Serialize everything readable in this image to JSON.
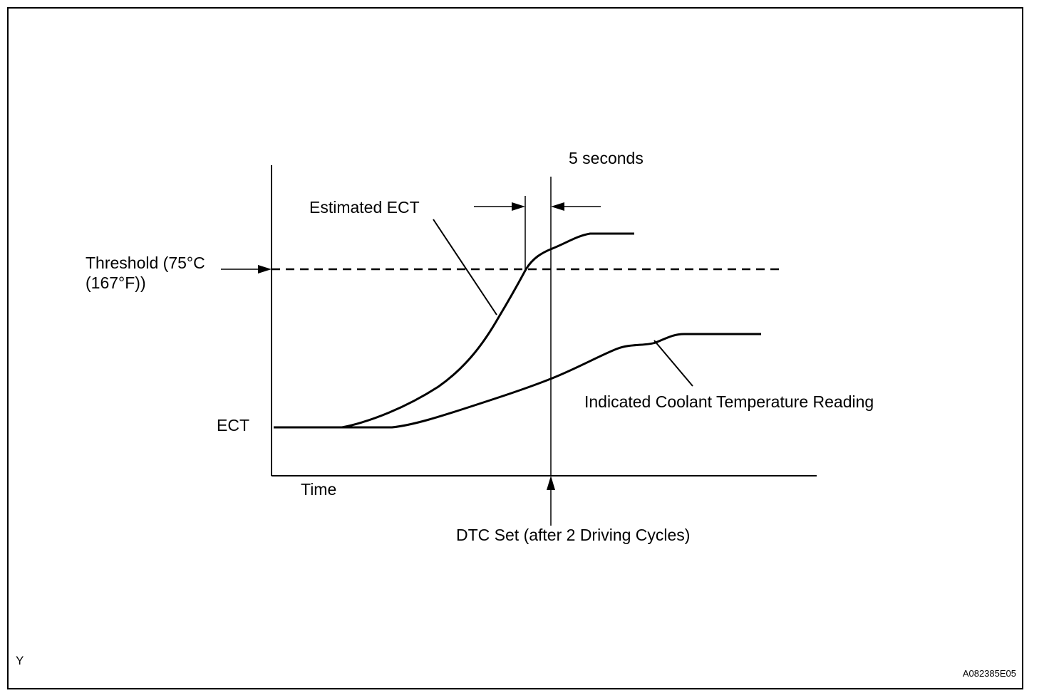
{
  "labels": {
    "five_seconds": "5 seconds",
    "estimated_ect": "Estimated ECT",
    "threshold_line1": "Threshold  (75°C",
    "threshold_line2": "(167°F))",
    "ect": "ECT",
    "time": "Time",
    "indicated_reading": "Indicated Coolant Temperature Reading",
    "dtc_set": "DTC Set (after 2 Driving Cycles)",
    "corner_code": "Y",
    "figure_id": "A082385E05"
  },
  "colors": {
    "ink": "#000000",
    "background": "#ffffff"
  }
}
